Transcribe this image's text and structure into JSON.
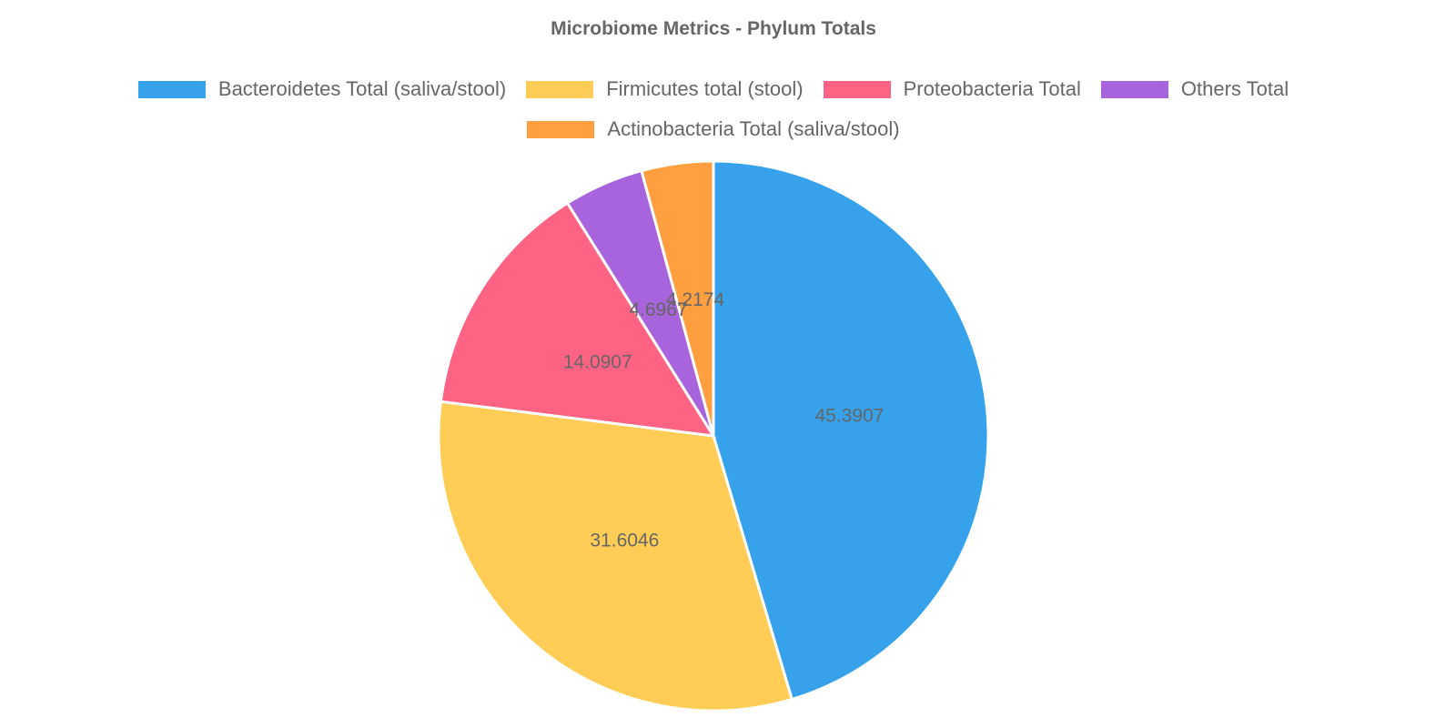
{
  "chart_data": {
    "type": "pie",
    "title": "Microbiome Metrics - Phylum Totals",
    "legend_position": "top",
    "slices": [
      {
        "label": "Bacteroidetes Total (saliva/stool)",
        "value": 45.3907,
        "display": "45.3907",
        "color": "#36A2EB"
      },
      {
        "label": "Firmicutes total (stool)",
        "value": 31.6046,
        "display": "31.6046",
        "color": "#FFCD56"
      },
      {
        "label": "Proteobacteria Total",
        "value": 14.0907,
        "display": "14.0907",
        "color": "#FF6384"
      },
      {
        "label": "Others Total",
        "value": 4.6967,
        "display": "4.6967",
        "color": "#A864DC"
      },
      {
        "label": "Actinobacteria Total (saliva/stool)",
        "value": 4.2174,
        "display": "4.2174",
        "color": "#FF9F40"
      }
    ]
  }
}
